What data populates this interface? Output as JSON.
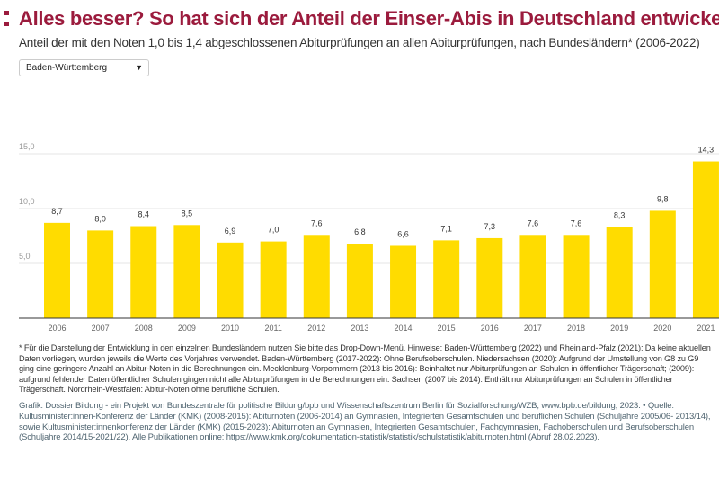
{
  "title": "Alles besser? So hat sich der Anteil der Einser-Abis in Deutschland entwickelt",
  "subtitle": "Anteil der mit den Noten 1,0 bis 1,4 abgeschlossenen Abiturprüfungen an allen Abiturprüfungen, nach Bundesländern* (2006-2022)",
  "dropdown": {
    "selected": "Baden-Württemberg"
  },
  "notes": "* Für die Darstellung der Entwicklung in den einzelnen Bundesländern nutzen Sie bitte das Drop-Down-Menü. Hinweise: Baden-Württemberg (2022) und Rheinland-Pfalz (2021): Da keine aktuellen Daten vorliegen, wurden jeweils die Werte des Vorjahres verwendet. Baden-Württemberg (2017-2022): Ohne Berufsoberschulen. Niedersachsen (2020): Aufgrund der Umstellung von G8 zu G9 ging eine geringere Anzahl an Abitur-Noten in die Berechnungen ein. Mecklenburg-Vorpommern (2013 bis 2016): Beinhaltet nur Abiturprüfungen an Schulen in öffentlicher Trägerschaft; (2009): aufgrund fehlender Daten öffentlicher Schulen gingen nicht alle Abiturprüfungen in die Berechnungen ein. Sachsen (2007 bis 2014): Enthält nur Abiturprüfungen an Schulen in öffentlicher Trägerschaft. Nordrhein-Westfalen: Abitur-Noten ohne berufliche Schulen.",
  "credit": "Grafik: Dossier Bildung - ein Projekt von Bundeszentrale für politische Bildung/bpb und Wissenschaftszentrum Berlin für Sozialforschung/WZB, www.bpb.de/bildung, 2023. • Quelle: Kultusminister:innen-Konferenz der Länder (KMK) (2008-2015): Abiturnoten (2006-2014) an Gymnasien, Integrierten Gesamtschulen und beruflichen Schulen (Schuljahre 2005/06- 2013/14), sowie Kultusminister:innenkonferenz der Länder (KMK) (2015-2023): Abiturnoten an Gymnasien, Integrierten Gesamtschulen, Fachgymnasien, Fachoberschulen und Berufsoberschulen (Schuljahre 2014/15-2021/22). Alle Publikationen online: https://www.kmk.org/dokumentation-statistik/statistik/schulstatistik/abiturnoten.html (Abruf 28.02.2023).",
  "chart_data": {
    "type": "bar",
    "categories": [
      "2006",
      "2007",
      "2008",
      "2009",
      "2010",
      "2011",
      "2012",
      "2013",
      "2014",
      "2015",
      "2016",
      "2017",
      "2018",
      "2019",
      "2020",
      "2021"
    ],
    "values": [
      8.7,
      8.0,
      8.4,
      8.5,
      6.9,
      7.0,
      7.6,
      6.8,
      6.6,
      7.1,
      7.3,
      7.6,
      7.6,
      8.3,
      9.8,
      14.3
    ],
    "value_labels": [
      "8,7",
      "8,0",
      "8,4",
      "8,5",
      "6,9",
      "7,0",
      "7,6",
      "6,8",
      "6,6",
      "7,1",
      "7,3",
      "7,6",
      "7,6",
      "8,3",
      "9,8",
      "14,3"
    ],
    "yticks": [
      "5,0",
      "10,0",
      "15,0"
    ],
    "ylim": [
      0,
      15
    ],
    "grid": true,
    "bar_color": "#ffdc00"
  }
}
